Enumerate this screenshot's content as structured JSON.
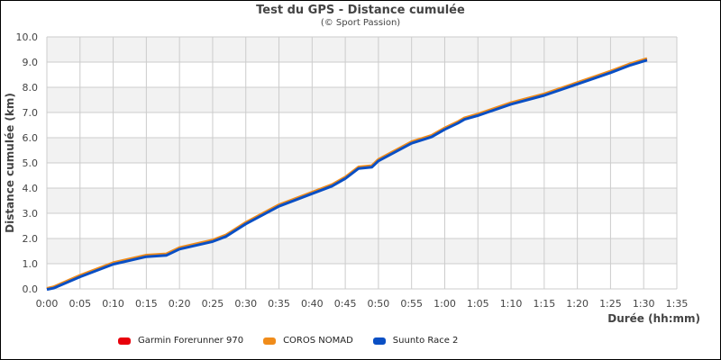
{
  "chart_data": {
    "type": "line",
    "title": "Test du GPS - Distance cumulée",
    "subtitle": "(© Sport Passion)",
    "xlabel": "Durée (hh:mm)",
    "ylabel": "Distance cumulée (km)",
    "xlim_minutes": [
      0,
      95
    ],
    "ylim": [
      0,
      10
    ],
    "x_ticks": [
      "0:00",
      "0:05",
      "0:10",
      "0:15",
      "0:20",
      "0:25",
      "0:30",
      "0:35",
      "0:40",
      "0:45",
      "0:50",
      "0:55",
      "1:00",
      "1:05",
      "1:10",
      "1:15",
      "1:20",
      "1:25",
      "1:30",
      "1:35"
    ],
    "y_ticks": [
      "0.0",
      "1.0",
      "2.0",
      "3.0",
      "4.0",
      "5.0",
      "6.0",
      "7.0",
      "8.0",
      "9.0",
      "10.0"
    ],
    "grid": true,
    "legend_position": "bottom",
    "x_minutes": [
      0,
      1,
      5,
      10,
      15,
      18,
      20,
      25,
      27,
      30,
      35,
      40,
      43,
      45,
      47,
      49,
      50,
      55,
      58,
      60,
      62,
      63,
      65,
      70,
      75,
      80,
      85,
      88,
      90.5
    ],
    "series": [
      {
        "name": "Garmin Forerunner 970",
        "color": "#e8000b",
        "values": [
          0,
          0.05,
          0.5,
          1.0,
          1.3,
          1.35,
          1.6,
          1.9,
          2.1,
          2.6,
          3.3,
          3.8,
          4.1,
          4.4,
          4.8,
          4.85,
          5.1,
          5.8,
          6.05,
          6.35,
          6.6,
          6.75,
          6.9,
          7.35,
          7.7,
          8.15,
          8.6,
          8.9,
          9.1
        ]
      },
      {
        "name": "COROS NOMAD",
        "color": "#f08c1a",
        "values": [
          0,
          0.06,
          0.52,
          1.02,
          1.32,
          1.37,
          1.62,
          1.92,
          2.12,
          2.62,
          3.32,
          3.82,
          4.12,
          4.42,
          4.82,
          4.87,
          5.12,
          5.82,
          6.07,
          6.37,
          6.62,
          6.77,
          6.92,
          7.37,
          7.72,
          8.17,
          8.62,
          8.92,
          9.12
        ]
      },
      {
        "name": "Suunto Race 2",
        "color": "#0a4fc4",
        "values": [
          0,
          0.05,
          0.5,
          1.0,
          1.3,
          1.35,
          1.6,
          1.9,
          2.1,
          2.6,
          3.3,
          3.8,
          4.1,
          4.4,
          4.8,
          4.85,
          5.1,
          5.8,
          6.05,
          6.35,
          6.6,
          6.75,
          6.9,
          7.35,
          7.7,
          8.15,
          8.6,
          8.9,
          9.1
        ]
      }
    ]
  },
  "colors": {
    "band": "#f2f2f2",
    "grid": "#cccccc",
    "text": "#444444"
  }
}
